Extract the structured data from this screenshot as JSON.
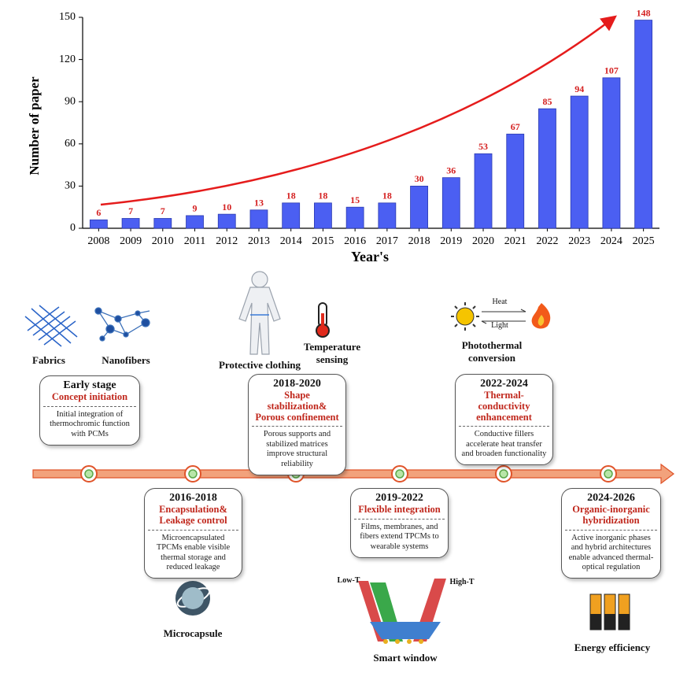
{
  "chart_data": {
    "type": "bar",
    "x_label": "Year's",
    "y_label": "Number of paper",
    "categories": [
      "2008",
      "2009",
      "2010",
      "2011",
      "2012",
      "2013",
      "2014",
      "2015",
      "2016",
      "2017",
      "2018",
      "2019",
      "2020",
      "2021",
      "2022",
      "2023",
      "2024",
      "2025"
    ],
    "values": [
      6,
      7,
      7,
      9,
      10,
      13,
      18,
      18,
      15,
      18,
      30,
      36,
      53,
      67,
      85,
      94,
      107,
      148
    ],
    "color": "#4b5ff2",
    "label_color": "#d42020",
    "ylim": [
      0,
      150
    ],
    "yticks": [
      0,
      30,
      60,
      90,
      120,
      150
    ]
  },
  "timeline": {
    "stages": [
      {
        "period": "Early stage",
        "topic": "Concept initiation",
        "description": "Initial integration of thermochromic function with PCMs"
      },
      {
        "period": "2016-2018",
        "topic": "Encapsulation& Leakage control",
        "description": "Microencapsulated TPCMs enable visible thermal storage and reduced leakage"
      },
      {
        "period": "2018-2020",
        "topic": "Shape stabilization& Porous confinement",
        "description": "Porous supports and stabilized matrices improve structural reliability"
      },
      {
        "period": "2019-2022",
        "topic": "Flexible integration",
        "description": "Films, membranes, and fibers extend TPCMs to wearable systems"
      },
      {
        "period": "2022-2024",
        "topic": "Thermal-conductivity enhancement",
        "description": "Conductive fillers accelerate heat transfer and broaden functionality"
      },
      {
        "period": "2024-2026",
        "topic": "Organic-inorganic hybridization",
        "description": "Active inorganic phases and hybrid architectures enable advanced thermal-optical regulation"
      }
    ],
    "icons": [
      "Fabrics",
      "Nanofibers",
      "Protective clothing",
      "Temperature sensing",
      "Photothermal conversion",
      "Heat",
      "Light",
      "Microcapsule",
      "Low-T",
      "High-T",
      "Smart window",
      "Energy efficiency"
    ]
  }
}
